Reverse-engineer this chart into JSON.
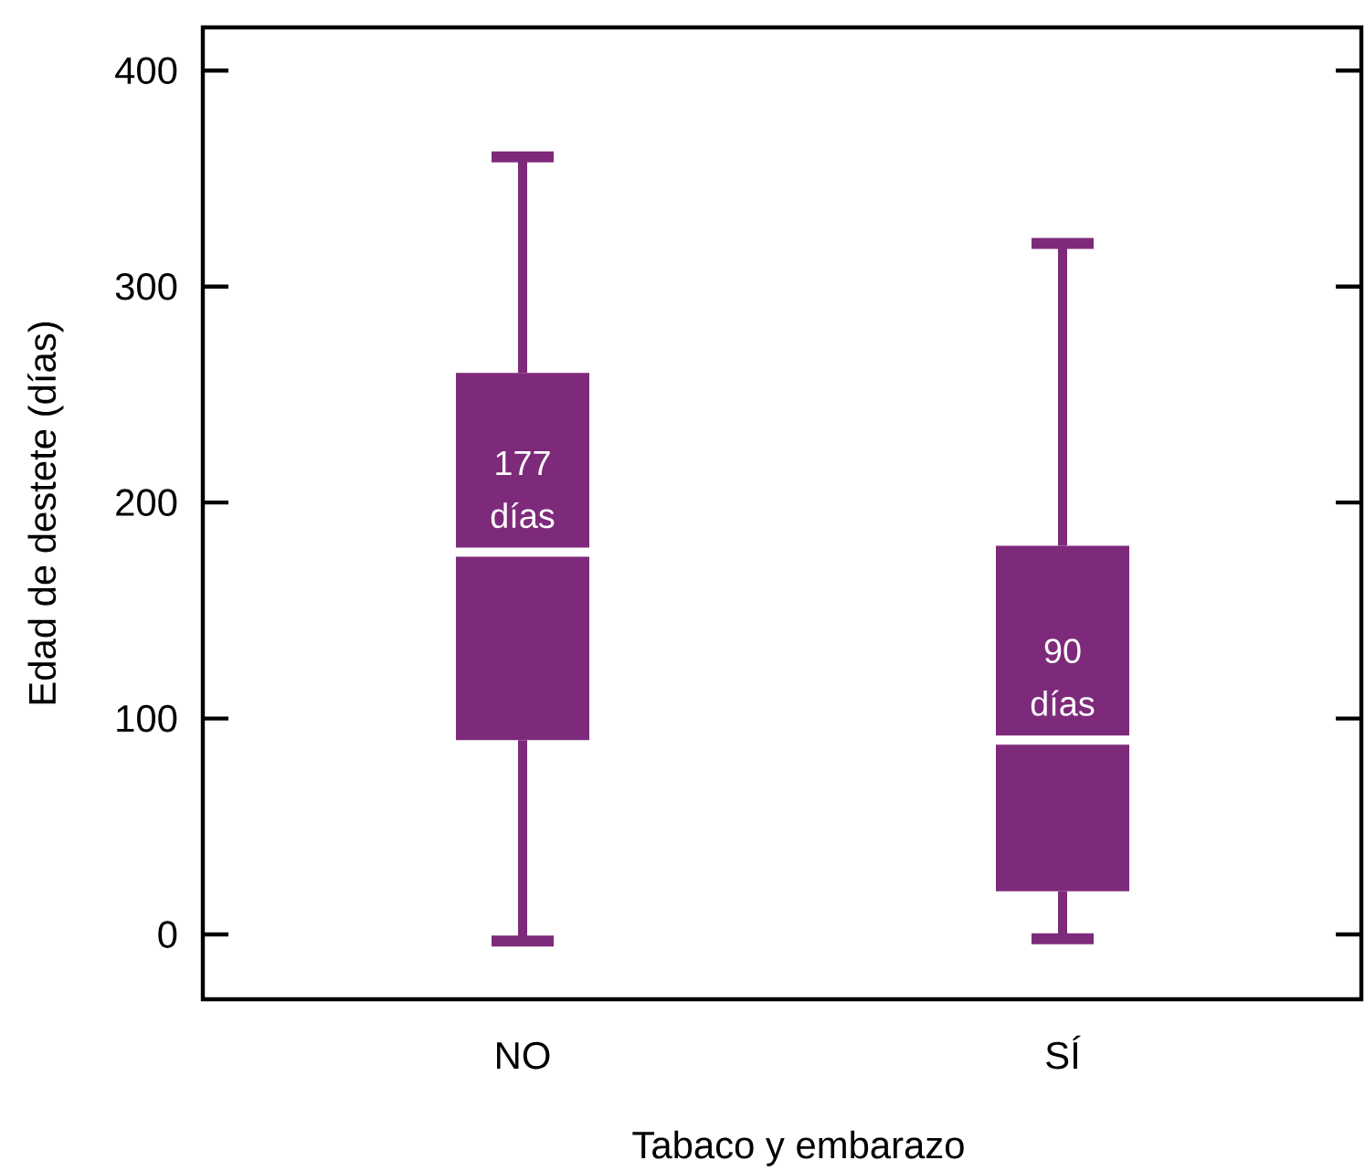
{
  "chart_data": {
    "type": "box",
    "xlabel": "Tabaco y embarazo",
    "ylabel": "Edad de destete (días)",
    "categories": [
      "NO",
      "SÍ"
    ],
    "color": "#7e2a7b",
    "boxes": [
      {
        "low": -3,
        "q1": 90,
        "median": 177,
        "q3": 260,
        "high": 360
      },
      {
        "low": -2,
        "q1": 20,
        "median": 90,
        "q3": 180,
        "high": 320
      }
    ],
    "ylim": [
      -30,
      420
    ],
    "yticks": [
      0,
      100,
      200,
      300,
      400
    ],
    "annotations": [
      {
        "text": "177 días",
        "x": "NO",
        "y": 177
      },
      {
        "text": "90 días",
        "x": "SÍ",
        "y": 90
      }
    ]
  }
}
